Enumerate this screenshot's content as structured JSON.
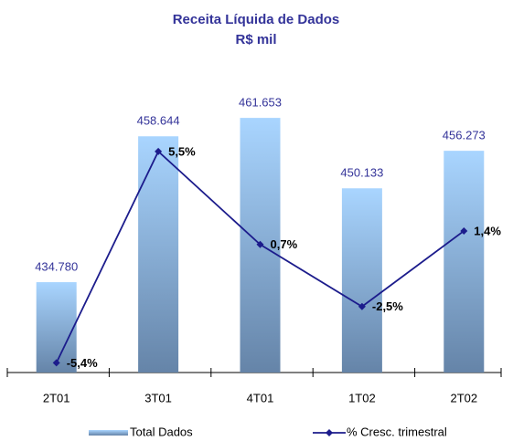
{
  "chart_data": {
    "type": "bar",
    "title": "Receita Líquida de Dados",
    "subtitle": "R$ mil",
    "categories": [
      "2T01",
      "3T01",
      "4T01",
      "1T02",
      "2T02"
    ],
    "series": [
      {
        "name": "Total Dados",
        "type": "bar",
        "color": "#8fbef0",
        "values": [
          434780,
          458644,
          461653,
          450133,
          456273
        ],
        "value_labels": [
          "434.780",
          "458.644",
          "461.653",
          "450.133",
          "456.273"
        ]
      },
      {
        "name": "% Cresc. trimestral",
        "type": "line",
        "axis": "y2",
        "color": "#1c1c8c",
        "values": [
          -5.4,
          5.5,
          0.7,
          -2.5,
          1.4
        ],
        "value_labels": [
          "-5,4%",
          "5,5%",
          "0,7%",
          "-2,5%",
          "1,4%"
        ]
      }
    ],
    "ylim": [
      420000,
      466000
    ],
    "y2lim": [
      -5.9,
      8.6
    ],
    "legend": "bottom"
  }
}
